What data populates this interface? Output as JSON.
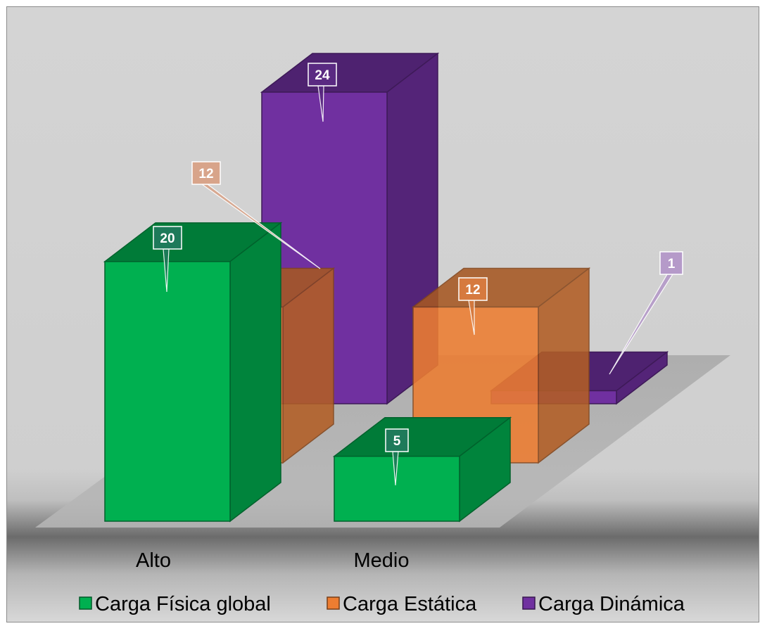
{
  "chart_data": {
    "type": "bar",
    "categories": [
      "Alto",
      "Medio"
    ],
    "series": [
      {
        "name": "Carga Física global",
        "values": [
          20,
          5
        ],
        "color": "#00B050"
      },
      {
        "name": "Carga Estática",
        "values": [
          12,
          12
        ],
        "color": "#ED7D31"
      },
      {
        "name": "Carga Dinámica",
        "values": [
          24,
          1
        ],
        "color": "#7030A0"
      }
    ],
    "data_labels": {
      "Carga Física global": [
        "20",
        "5"
      ],
      "Carga Estática": [
        "12",
        "12"
      ],
      "Carga Dinámica": [
        "24",
        "1"
      ]
    },
    "ylim": [
      0,
      24
    ],
    "grid": false,
    "legend_position": "bottom",
    "style": "3d-column"
  }
}
